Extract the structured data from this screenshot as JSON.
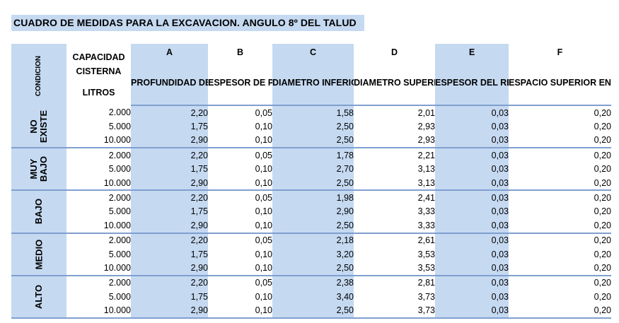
{
  "title": "CUADRO DE MEDIDAS PARA LA EXCAVACION. ANGULO 8º DEL TALUD",
  "headers": {
    "condicion": "CONDICION",
    "capacidad_line1": "CAPACIDAD",
    "capacidad_line2": "CISTERNA",
    "capacidad_line3": "LITROS",
    "columns": [
      {
        "letter": "A",
        "label": "PROFUNDIDAD DE EXCAVACION"
      },
      {
        "letter": "B",
        "label": "ESPESOR DE PLANTILLA"
      },
      {
        "letter": "C",
        "label": "DIAMETRO INFERIOR DE LA EXCAVACION"
      },
      {
        "letter": "D",
        "label": "DIAMETRO SUPERIOR DE LA EXCAVACION"
      },
      {
        "letter": "E",
        "label": "ESPESOR DEL REPELLADO"
      },
      {
        "letter": "F",
        "label": "ESPACIO SUPERIOR ENTRE LA CISTERNA Y LA LOSA"
      }
    ]
  },
  "groups": [
    {
      "label": "NO\nEXISTE",
      "rows": [
        [
          "2.000",
          "2,20",
          "0,05",
          "1,58",
          "2,01",
          "0,03",
          "0,20"
        ],
        [
          "5.000",
          "1,75",
          "0,10",
          "2,50",
          "2,93",
          "0,03",
          "0,20"
        ],
        [
          "10.000",
          "2,90",
          "0,10",
          "2,50",
          "2,93",
          "0,03",
          "0,20"
        ]
      ]
    },
    {
      "label": "MUY\nBAJO",
      "rows": [
        [
          "2.000",
          "2,20",
          "0,05",
          "1,78",
          "2,21",
          "0,03",
          "0,20"
        ],
        [
          "5.000",
          "1,75",
          "0,10",
          "2,70",
          "3,13",
          "0,03",
          "0,20"
        ],
        [
          "10.000",
          "2,90",
          "0,10",
          "2,50",
          "3,13",
          "0,03",
          "0,20"
        ]
      ]
    },
    {
      "label": "BAJO",
      "rows": [
        [
          "2.000",
          "2,20",
          "0,05",
          "1,98",
          "2,41",
          "0,03",
          "0,20"
        ],
        [
          "5.000",
          "1,75",
          "0,10",
          "2,90",
          "3,33",
          "0,03",
          "0,20"
        ],
        [
          "10.000",
          "2,90",
          "0,10",
          "2,50",
          "3,33",
          "0,03",
          "0,20"
        ]
      ]
    },
    {
      "label": "MEDIO",
      "rows": [
        [
          "2.000",
          "2,20",
          "0,05",
          "2,18",
          "2,61",
          "0,03",
          "0,20"
        ],
        [
          "5.000",
          "1,75",
          "0,10",
          "3,20",
          "3,53",
          "0,03",
          "0,20"
        ],
        [
          "10.000",
          "2,90",
          "0,10",
          "2,50",
          "3,53",
          "0,03",
          "0,20"
        ]
      ]
    },
    {
      "label": "ALTO",
      "rows": [
        [
          "2.000",
          "2,20",
          "0,05",
          "2,38",
          "2,81",
          "0,03",
          "0,20"
        ],
        [
          "5.000",
          "1,75",
          "0,10",
          "3,40",
          "3,73",
          "0,03",
          "0,20"
        ],
        [
          "10.000",
          "2,90",
          "0,10",
          "2,50",
          "3,73",
          "0,03",
          "0,20"
        ]
      ]
    }
  ]
}
